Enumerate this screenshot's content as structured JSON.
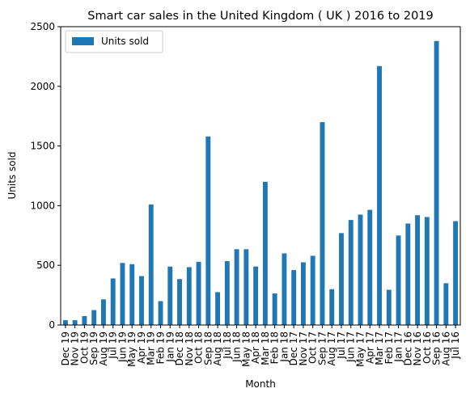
{
  "chart_data": {
    "type": "bar",
    "title": "Smart car sales in the United Kingdom ( UK ) 2016 to 2019",
    "xlabel": "Month",
    "ylabel": "Units sold",
    "ylim": [
      0,
      2500
    ],
    "yticks": [
      0,
      500,
      1000,
      1500,
      2000,
      2500
    ],
    "grid": false,
    "legend_position": "top-left",
    "bar_color": "#1f77b4",
    "series": [
      {
        "name": "Units sold",
        "values": [
          40,
          40,
          75,
          125,
          215,
          390,
          520,
          510,
          410,
          1010,
          200,
          490,
          385,
          485,
          530,
          1580,
          275,
          535,
          635,
          635,
          490,
          1200,
          265,
          600,
          460,
          525,
          580,
          1700,
          300,
          770,
          880,
          925,
          965,
          2170,
          295,
          750,
          850,
          920,
          905,
          2380,
          350,
          870
        ]
      }
    ],
    "categories": [
      "Dec 19",
      "Nov 19",
      "Oct 19",
      "Sep 19",
      "Aug 19",
      "Jul 19",
      "Jun 19",
      "May 19",
      "Apr 19",
      "Mar 19",
      "Feb 19",
      "Jan 19",
      "Dec 18",
      "Nov 18",
      "Oct 18",
      "Sep 18",
      "Aug 18",
      "Jul 18",
      "Jun 18",
      "May 18",
      "Apr 18",
      "Mar 18",
      "Feb 18",
      "Jan 18",
      "Dec 17",
      "Nov 17",
      "Oct 17",
      "Sep 17",
      "Aug 17",
      "Jul 17",
      "Jun 17",
      "May 17",
      "Apr 17",
      "Mar 17",
      "Feb 17",
      "Jan 17",
      "Dec 16",
      "Nov 16",
      "Oct 16",
      "Sep 16",
      "Aug 16",
      "Jul 16"
    ]
  }
}
